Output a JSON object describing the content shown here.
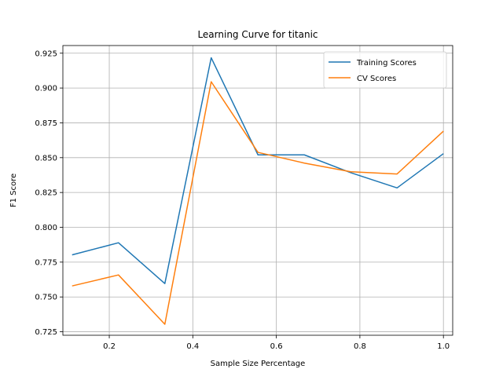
{
  "chart_data": {
    "type": "line",
    "title": "Learning Curve for titanic",
    "xlabel": "Sample Size Percentage",
    "ylabel": "F1 Score",
    "xlim": [
      0.0889,
      1.0222
    ],
    "ylim": [
      0.7225,
      0.9305
    ],
    "xticks": [
      0.2,
      0.4,
      0.6,
      0.8,
      1.0
    ],
    "xtick_labels": [
      "0.2",
      "0.4",
      "0.6",
      "0.8",
      "1.0"
    ],
    "yticks": [
      0.725,
      0.75,
      0.775,
      0.8,
      0.825,
      0.85,
      0.875,
      0.9,
      0.925
    ],
    "ytick_labels": [
      "0.725",
      "0.750",
      "0.775",
      "0.800",
      "0.825",
      "0.850",
      "0.875",
      "0.900",
      "0.925"
    ],
    "grid": true,
    "legend_position": "top-right",
    "x": [
      0.111,
      0.222,
      0.333,
      0.444,
      0.556,
      0.667,
      0.778,
      0.889,
      1.0
    ],
    "series": [
      {
        "name": "Training Scores",
        "color": "#1f77b4",
        "values": [
          0.7802,
          0.7889,
          0.7596,
          0.9217,
          0.852,
          0.852,
          0.8392,
          0.8283,
          0.8529
        ]
      },
      {
        "name": "CV Scores",
        "color": "#ff7f0e",
        "values": [
          0.7579,
          0.7658,
          0.7304,
          0.9045,
          0.8538,
          0.8461,
          0.8399,
          0.8383,
          0.869
        ]
      }
    ]
  }
}
